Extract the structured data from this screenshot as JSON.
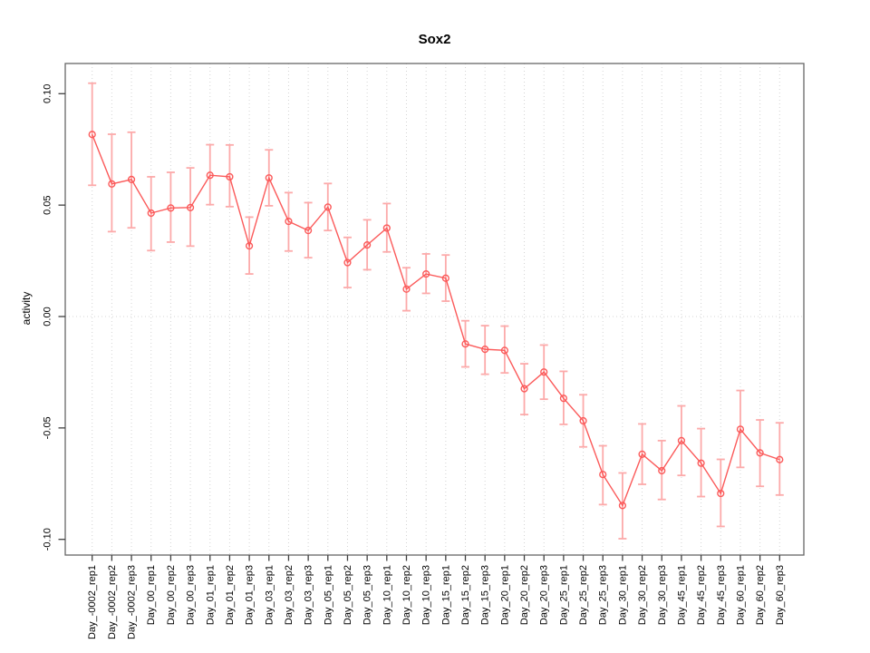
{
  "chart_data": {
    "type": "line",
    "title": "Sox2",
    "xlabel": "",
    "ylabel": "activity",
    "legend_position": "none",
    "grid": "vertical dotted gridline at every category; dotted horizontal line at y=0",
    "ylim": [
      -0.107,
      0.113
    ],
    "yticks": [
      0.1,
      0.05,
      0.0,
      -0.05,
      -0.1
    ],
    "ytick_labels": [
      "0.10",
      "0.05",
      "0.00",
      "-0.05",
      "-0.10"
    ],
    "categories": [
      "Day_-0002_rep1",
      "Day_-0002_rep2",
      "Day_-0002_rep3",
      "Day_00_rep1",
      "Day_00_rep2",
      "Day_00_rep3",
      "Day_01_rep1",
      "Day_01_rep2",
      "Day_01_rep3",
      "Day_03_rep1",
      "Day_03_rep2",
      "Day_03_rep3",
      "Day_05_rep1",
      "Day_05_rep2",
      "Day_05_rep3",
      "Day_10_rep1",
      "Day_10_rep2",
      "Day_10_rep3",
      "Day_15_rep1",
      "Day_15_rep2",
      "Day_15_rep3",
      "Day_20_rep1",
      "Day_20_rep2",
      "Day_20_rep3",
      "Day_25_rep1",
      "Day_25_rep2",
      "Day_25_rep3",
      "Day_30_rep1",
      "Day_30_rep2",
      "Day_30_rep3",
      "Day_45_rep1",
      "Day_45_rep2",
      "Day_45_rep3",
      "Day_60_rep1",
      "Day_60_rep2",
      "Day_60_rep3"
    ],
    "series": [
      {
        "name": "Sox2 activity",
        "marker": "open-circle",
        "values": [
          0.0817,
          0.0595,
          0.0615,
          0.0464,
          0.0487,
          0.0489,
          0.0634,
          0.0627,
          0.0317,
          0.0622,
          0.0427,
          0.0386,
          0.0491,
          0.0242,
          0.0321,
          0.0397,
          0.0123,
          0.0191,
          0.0172,
          -0.0123,
          -0.0147,
          -0.0152,
          -0.0324,
          -0.0249,
          -0.0367,
          -0.0468,
          -0.0709,
          -0.0848,
          -0.0618,
          -0.0692,
          -0.0557,
          -0.0658,
          -0.0794,
          -0.0506,
          -0.0612,
          -0.0642
        ],
        "err_upper": [
          0.1047,
          0.0818,
          0.0827,
          0.0627,
          0.0647,
          0.0667,
          0.0771,
          0.077,
          0.0446,
          0.0748,
          0.0556,
          0.0511,
          0.0597,
          0.0355,
          0.0434,
          0.0507,
          0.0219,
          0.0281,
          0.0276,
          -0.0019,
          -0.0041,
          -0.0043,
          -0.0212,
          -0.0128,
          -0.0246,
          -0.0351,
          -0.058,
          -0.0702,
          -0.0482,
          -0.0557,
          -0.0401,
          -0.0503,
          -0.0641,
          -0.0332,
          -0.0464,
          -0.0477
        ],
        "err_lower": [
          0.0589,
          0.0381,
          0.0398,
          0.0296,
          0.0334,
          0.0316,
          0.0502,
          0.0493,
          0.0191,
          0.0497,
          0.0294,
          0.0264,
          0.0386,
          0.013,
          0.021,
          0.029,
          0.0026,
          0.0104,
          0.0069,
          -0.0226,
          -0.0259,
          -0.0253,
          -0.044,
          -0.0371,
          -0.0484,
          -0.0585,
          -0.0844,
          -0.0997,
          -0.0753,
          -0.0821,
          -0.0713,
          -0.0808,
          -0.0942,
          -0.0677,
          -0.0762,
          -0.0801
        ]
      }
    ],
    "colors": {
      "series_line": "#fb5a5a",
      "error_bar": "#fcaaaa",
      "grid": "#d4d4d4",
      "zero_line": "#d4d4d4",
      "box": "#666666",
      "tick": "#404040",
      "text": "#000000",
      "background": "#ffffff"
    }
  }
}
